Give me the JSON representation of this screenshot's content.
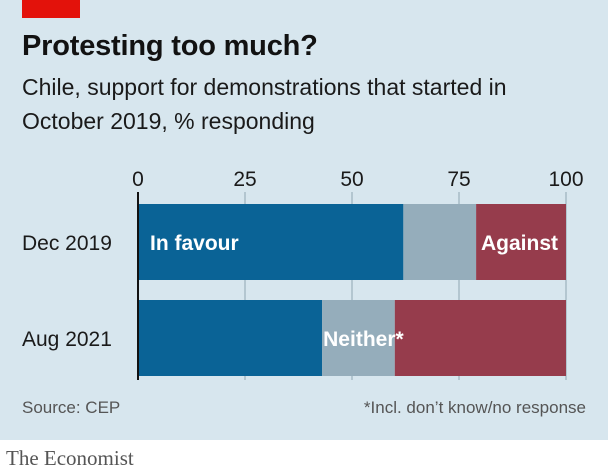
{
  "title": "Protesting too much?",
  "subtitle": "Chile, support for demonstrations that started in October 2019, % responding",
  "source": "Source: CEP",
  "footnote": "*Incl. don’t know/no response",
  "brand": "The Economist",
  "colors": {
    "background": "#d7e6ee",
    "in_favour": "#0a6396",
    "neither": "#95adbb",
    "against": "#963c4c",
    "accent_tag": "#e3120b"
  },
  "chart_data": {
    "type": "bar",
    "orientation": "horizontal",
    "stacked": true,
    "categories": [
      "Dec 2019",
      "Aug 2021"
    ],
    "series": [
      {
        "name": "In favour",
        "values": [
          62,
          43
        ],
        "color": "#0a6396"
      },
      {
        "name": "Neither*",
        "values": [
          17,
          17
        ],
        "color": "#95adbb"
      },
      {
        "name": "Against",
        "values": [
          21,
          40
        ],
        "color": "#963c4c"
      }
    ],
    "xlim": [
      0,
      100
    ],
    "xticks": [
      0,
      25,
      50,
      75,
      100
    ],
    "xtick_labels": [
      "0",
      "25",
      "50",
      "75",
      "100"
    ],
    "grid": true,
    "legend": "inline labels"
  }
}
